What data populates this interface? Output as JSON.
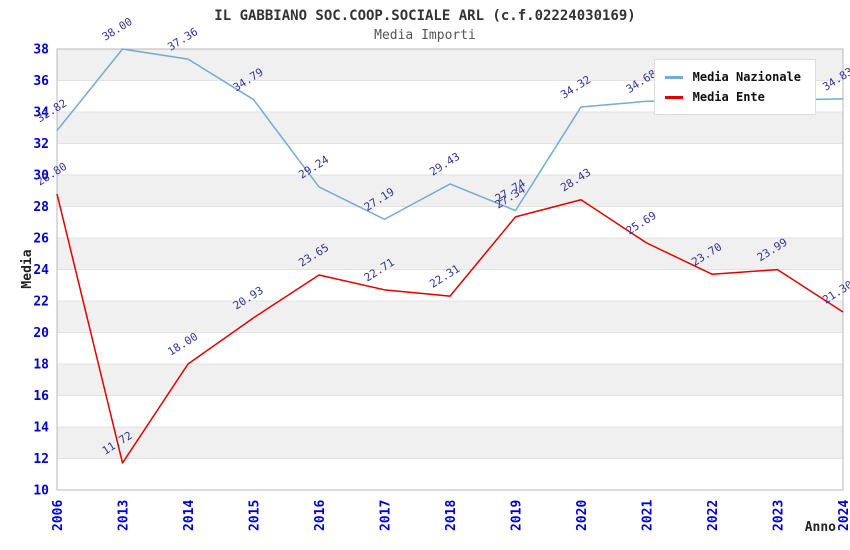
{
  "header": {
    "title": "IL GABBIANO SOC.COOP.SOCIALE ARL (c.f.02224030169)",
    "subtitle": "Media Importi"
  },
  "chart_data": {
    "type": "line",
    "title": "IL GABBIANO SOC.COOP.SOCIALE ARL (c.f.02224030169)",
    "subtitle": "Media Importi",
    "xlabel": "Anno",
    "ylabel": "Media",
    "ylim": [
      10,
      38
    ],
    "ytick_step": 2,
    "grid": "horizontal-bands-alternating",
    "legend_position": "top-right",
    "band_color": "#f0f0f0",
    "gridline_color": "#e2e2e2",
    "plot_border_color": "#b8b8b8",
    "tick_label_color": "#0000cd",
    "point_label_color": "#333399",
    "categories": [
      "2006",
      "2013",
      "2014",
      "2015",
      "2016",
      "2017",
      "2018",
      "2019",
      "2020",
      "2021",
      "2022",
      "2023",
      "2024"
    ],
    "series": [
      {
        "name": "Media Nazionale",
        "color": "#74a9d8",
        "values": [
          32.82,
          38.0,
          37.36,
          34.79,
          29.24,
          27.19,
          29.43,
          27.74,
          34.32,
          34.68,
          34.72,
          34.76,
          34.83
        ],
        "labels": [
          "32.82",
          "38.00",
          "37.36",
          "34.79",
          "29.24",
          "27.19",
          "29.43",
          "27.74",
          "34.32",
          "34.68",
          null,
          null,
          "34.83"
        ]
      },
      {
        "name": "Media Ente",
        "color": "#e00000",
        "values": [
          28.8,
          11.72,
          18.0,
          20.93,
          23.65,
          22.71,
          22.31,
          27.34,
          28.43,
          25.69,
          23.7,
          23.99,
          21.3
        ],
        "labels": [
          "28.80",
          "11.72",
          "18.00",
          "20.93",
          "23.65",
          "22.71",
          "22.31",
          "27.34",
          "28.43",
          "25.69",
          "23.70",
          "23.99",
          "21.30"
        ]
      }
    ]
  }
}
